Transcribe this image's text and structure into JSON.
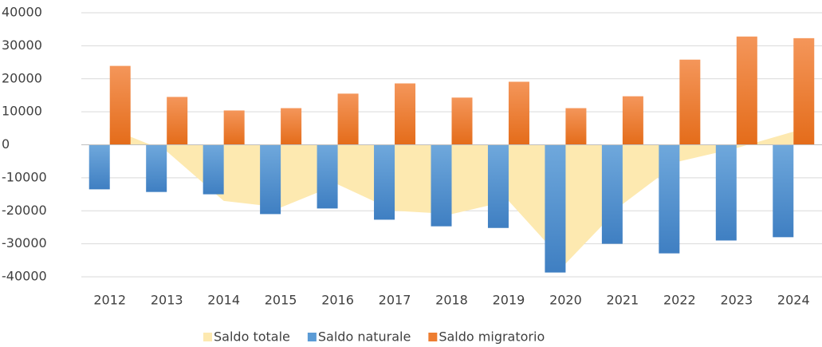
{
  "chart_data": {
    "type": "bar",
    "categories": [
      "2012",
      "2013",
      "2014",
      "2015",
      "2016",
      "2017",
      "2018",
      "2019",
      "2020",
      "2021",
      "2022",
      "2023",
      "2024"
    ],
    "series": [
      {
        "name": "Saldo totale",
        "type": "area",
        "color": "#fde9b0",
        "values": [
          5000,
          -2000,
          -17000,
          -19000,
          -12000,
          -20000,
          -21000,
          -17000,
          -36000,
          -18000,
          -5000,
          -1000,
          4000
        ]
      },
      {
        "name": "Saldo naturale",
        "color": "#5b9bd5",
        "values": [
          -13500,
          -14300,
          -15000,
          -21000,
          -19300,
          -22700,
          -24700,
          -25200,
          -38700,
          -30000,
          -32900,
          -29000,
          -28000
        ]
      },
      {
        "name": "Saldo migratorio",
        "color": "#ed7d31",
        "values": [
          23900,
          14500,
          10400,
          11100,
          15500,
          18600,
          14300,
          19100,
          11100,
          14700,
          25800,
          32800,
          32300
        ]
      }
    ],
    "ylim": [
      -40000,
      40000
    ],
    "yticks": [
      -40000,
      -30000,
      -20000,
      -10000,
      0,
      10000,
      20000,
      30000,
      40000
    ],
    "grid": true
  }
}
